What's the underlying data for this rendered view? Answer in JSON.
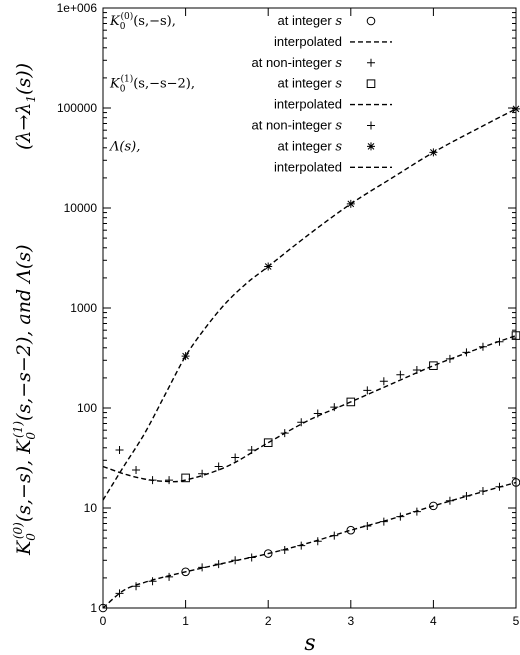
{
  "chart_data": {
    "type": "scatter",
    "xlabel": "s",
    "ylabel": "K0(0)(s,−s), K0(1)(s,−s−2), and Λ(s)",
    "ylabel_parts": [
      "K",
      "0",
      "(0)",
      "(s,−s), ",
      "K",
      "0",
      "(1)",
      "(s,−s−2), and ",
      "Λ(s)"
    ],
    "ylabel2": "(λ→λ₁(s))",
    "ylabel2_parts": [
      "(λ→λ",
      "1",
      "(s))"
    ],
    "xlim": [
      0,
      5
    ],
    "ylim": [
      1,
      1000000
    ],
    "y_scale": "log",
    "grid": false,
    "legend_position": "top-left",
    "x_ticks": [
      "0",
      "1",
      "2",
      "3",
      "4",
      "5"
    ],
    "y_ticks": [
      "1",
      "10",
      "100",
      "1000",
      "10000",
      "100000",
      "1e+006"
    ],
    "legend": [
      {
        "label_parts": [
          "K",
          "0",
          "(0)",
          "(s,−s),"
        ],
        "text": "at integer s",
        "marker": "circle"
      },
      {
        "label_parts": [],
        "text": "interpolated",
        "marker": "dashed"
      },
      {
        "label_parts": [],
        "text": "at non-integer s",
        "marker": "plus"
      },
      {
        "label_parts": [
          "K",
          "0",
          "(1)",
          "(s,−s−2),"
        ],
        "text": "at integer s",
        "marker": "square"
      },
      {
        "label_parts": [],
        "text": "interpolated",
        "marker": "dashed"
      },
      {
        "label_parts": [],
        "text": "at non-integer s",
        "marker": "plus"
      },
      {
        "label_parts": [
          "Λ(s),"
        ],
        "text": "at integer s",
        "marker": "star"
      },
      {
        "label_parts": [],
        "text": "interpolated",
        "marker": "dashed"
      }
    ],
    "series": [
      {
        "group": "K0(0)(s,-s)",
        "integer_points": {
          "x": [
            0,
            1,
            2,
            3,
            4,
            5
          ],
          "y": [
            1.0,
            2.3,
            3.5,
            6.0,
            10.5,
            18.0
          ]
        },
        "non_integer_points": {
          "x": [
            0.2,
            0.4,
            0.6,
            0.8,
            1.2,
            1.4,
            1.6,
            1.8,
            2.2,
            2.4,
            2.6,
            2.8,
            3.2,
            3.4,
            3.6,
            3.8,
            4.2,
            4.4,
            4.6,
            4.8
          ],
          "y": [
            1.4,
            1.65,
            1.85,
            2.05,
            2.55,
            2.75,
            3.0,
            3.2,
            3.8,
            4.2,
            4.65,
            5.3,
            6.6,
            7.3,
            8.2,
            9.2,
            11.8,
            13.2,
            14.8,
            16.3
          ]
        },
        "interpolated": {
          "x": [
            0,
            0.25,
            0.5,
            0.75,
            1,
            1.5,
            2,
            2.5,
            3,
            3.5,
            4,
            4.5,
            5
          ],
          "y": [
            1.0,
            1.5,
            1.8,
            2.05,
            2.3,
            2.85,
            3.5,
            4.5,
            6.0,
            7.8,
            10.5,
            13.8,
            18.0
          ]
        }
      },
      {
        "group": "K0(1)(s,-s-2)",
        "integer_points": {
          "x": [
            1,
            2,
            3,
            4,
            5
          ],
          "y": [
            20,
            45,
            115,
            265,
            530
          ]
        },
        "non_integer_points": {
          "x": [
            0.2,
            0.4,
            0.6,
            0.8,
            1.2,
            1.4,
            1.6,
            1.8,
            2.2,
            2.4,
            2.6,
            2.8,
            3.2,
            3.4,
            3.6,
            3.8,
            4.2,
            4.4,
            4.6,
            4.8
          ],
          "y": [
            38,
            24,
            19,
            19,
            22,
            26,
            32,
            38,
            56,
            72,
            88,
            102,
            150,
            185,
            215,
            240,
            310,
            360,
            410,
            460
          ]
        },
        "interpolated": {
          "x": [
            0,
            0.25,
            0.5,
            0.75,
            1,
            1.5,
            2,
            2.5,
            3,
            3.5,
            4,
            4.5,
            5
          ],
          "y": [
            26,
            22,
            19.5,
            18.5,
            19,
            26,
            45,
            76,
            115,
            175,
            265,
            380,
            530
          ]
        }
      },
      {
        "group": "Lambda(s)",
        "integer_points": {
          "x": [
            1,
            2,
            3,
            4,
            5
          ],
          "y": [
            330,
            2600,
            11000,
            36000,
            98000
          ]
        },
        "interpolated": {
          "x": [
            0,
            0.25,
            0.5,
            0.75,
            1,
            1.25,
            1.5,
            1.75,
            2,
            2.5,
            3,
            3.5,
            4,
            4.5,
            5
          ],
          "y": [
            12,
            26,
            55,
            135,
            330,
            650,
            1150,
            1800,
            2600,
            5500,
            11000,
            20000,
            36000,
            60000,
            98000
          ]
        }
      }
    ]
  }
}
